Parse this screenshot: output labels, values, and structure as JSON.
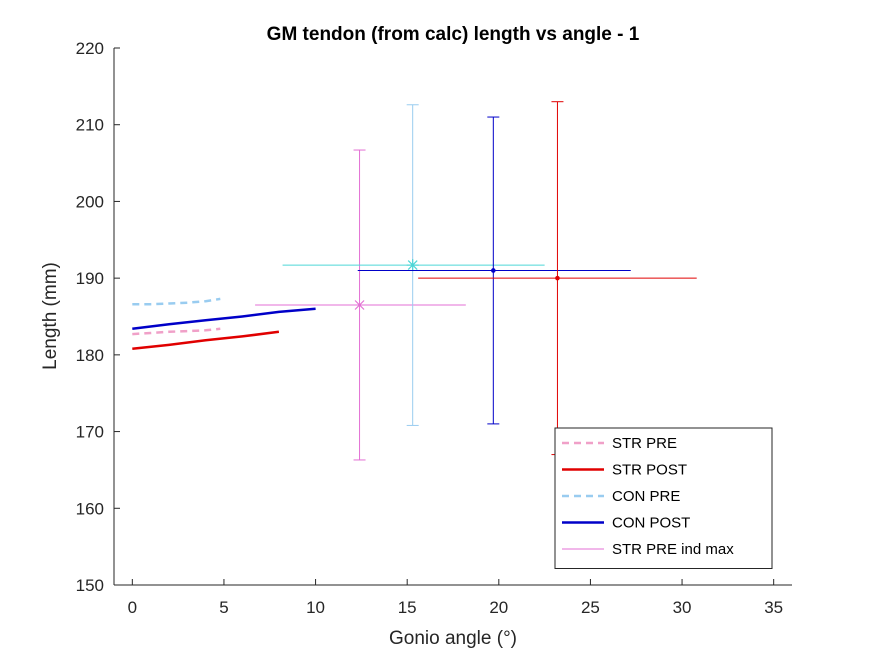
{
  "chart_data": {
    "type": "line",
    "title": "GM tendon (from calc) length vs angle - 1",
    "xlabel": "Gonio angle (°)",
    "ylabel": "Length (mm)",
    "xlim": [
      -1,
      36
    ],
    "ylim": [
      150,
      220
    ],
    "xticks": [
      0,
      5,
      10,
      15,
      20,
      25,
      30,
      35
    ],
    "yticks": [
      150,
      160,
      170,
      180,
      190,
      200,
      210,
      220
    ],
    "grid": false,
    "legend_position": "bottom-right",
    "series": [
      {
        "name": "STR PRE",
        "color": "#f0a0c8",
        "style": "dashed",
        "width": 2.5,
        "x": [
          0,
          1,
          2,
          3,
          4,
          4.8
        ],
        "y": [
          182.7,
          182.85,
          183.0,
          183.1,
          183.2,
          183.4
        ]
      },
      {
        "name": "STR POST",
        "color": "#e00000",
        "style": "solid",
        "width": 2.5,
        "x": [
          0,
          2,
          4,
          6,
          8
        ],
        "y": [
          180.8,
          181.3,
          181.9,
          182.4,
          183.0
        ]
      },
      {
        "name": "CON PRE",
        "color": "#99ccf0",
        "style": "dashed",
        "width": 2.5,
        "x": [
          0,
          1,
          2,
          3,
          4,
          4.8
        ],
        "y": [
          186.6,
          186.6,
          186.7,
          186.8,
          187.0,
          187.3
        ]
      },
      {
        "name": "CON POST",
        "color": "#0000c8",
        "style": "solid",
        "width": 2.5,
        "x": [
          0,
          2,
          4,
          6,
          8,
          10
        ],
        "y": [
          183.4,
          184.0,
          184.5,
          185.0,
          185.6,
          186.0
        ]
      }
    ],
    "errorbars": [
      {
        "name": "STR PRE ind max",
        "color": "#e36fd4",
        "marker": "x",
        "x": 12.4,
        "y": 186.5,
        "xerr": [
          6.7,
          18.2
        ],
        "yerr": [
          166.3,
          206.7
        ]
      },
      {
        "color": "#4dd6d6",
        "capcolor": "#99ccf0",
        "marker": "*",
        "x": 15.3,
        "y": 191.7,
        "xerr": [
          8.2,
          22.5
        ],
        "yerr": [
          170.8,
          212.6
        ]
      },
      {
        "color": "#0000c8",
        "marker": ".",
        "x": 19.7,
        "y": 191.0,
        "xerr": [
          12.3,
          27.2
        ],
        "yerr": [
          171.0,
          211.0
        ]
      },
      {
        "color": "#e00000",
        "marker": ".",
        "x": 23.2,
        "y": 190.0,
        "xerr": [
          15.6,
          30.8
        ],
        "yerr": [
          167.0,
          213.0
        ]
      }
    ]
  }
}
